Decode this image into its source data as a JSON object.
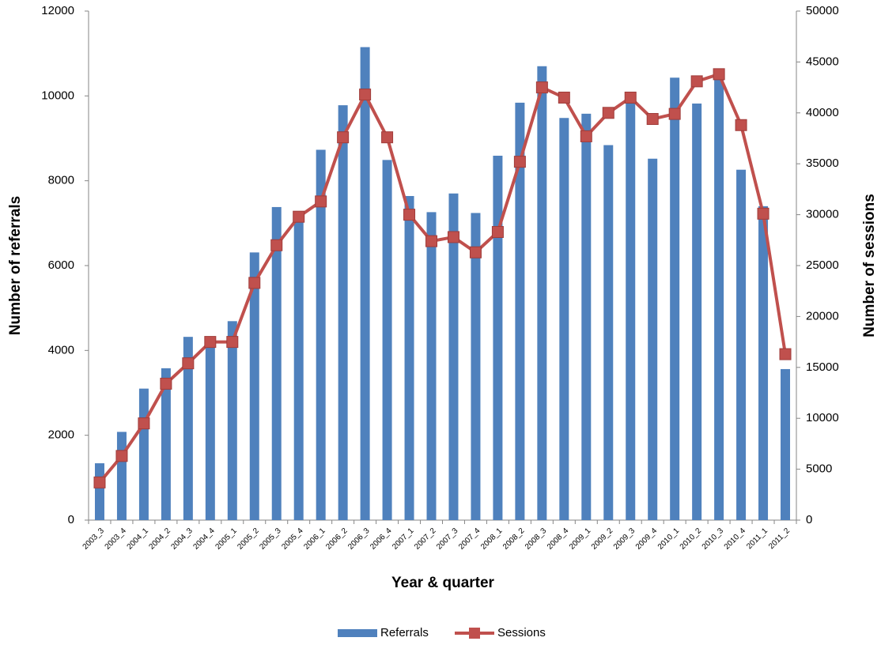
{
  "chart_data": {
    "type": "bar_line",
    "x_label": "Year & quarter",
    "y_label": "Number of referrals",
    "y2_label": "Number of sessions",
    "categories": [
      "2003_3",
      "2003_4",
      "2004_1",
      "2004_2",
      "2004_3",
      "2004_4",
      "2005_1",
      "2005_2",
      "2005_3",
      "2005_4",
      "2006_1",
      "2006_2",
      "2006_3",
      "2006_4",
      "2007_1",
      "2007_2",
      "2007_3",
      "2007_4",
      "2008_1",
      "2008_2",
      "2008_3",
      "2008_4",
      "2009_1",
      "2009_2",
      "2009_3",
      "2009_4",
      "2010_1",
      "2010_2",
      "2010_3",
      "2010_4",
      "2011_1",
      "2011_2"
    ],
    "series": [
      {
        "name": "Referrals",
        "color": "#4f81bd",
        "kind": "bar",
        "axis": "y",
        "values": [
          1340,
          2080,
          3100,
          3580,
          4320,
          4150,
          4690,
          6310,
          7380,
          7180,
          8730,
          9780,
          11150,
          8490,
          7640,
          7260,
          7700,
          7240,
          8590,
          9840,
          10700,
          9480,
          9580,
          8840,
          9960,
          8520,
          10430,
          9820,
          10500,
          8260,
          7400,
          3560
        ]
      },
      {
        "name": "Sessions",
        "color": "#c0504d",
        "kind": "line",
        "axis": "y2",
        "values": [
          3700,
          6300,
          9500,
          13400,
          15400,
          17500,
          17500,
          23300,
          27000,
          29800,
          31300,
          37600,
          41800,
          37600,
          30000,
          27400,
          27800,
          26300,
          28300,
          35200,
          42500,
          41500,
          37700,
          40000,
          41500,
          39400,
          39900,
          43100,
          43800,
          38800,
          30100,
          16300
        ]
      }
    ],
    "ylim": [
      0,
      12000
    ],
    "yticks": [
      0,
      2000,
      4000,
      6000,
      8000,
      10000,
      12000
    ],
    "y2lim": [
      0,
      50000
    ],
    "y2ticks": [
      0,
      5000,
      10000,
      15000,
      20000,
      25000,
      30000,
      35000,
      40000,
      45000,
      50000
    ],
    "legend": "bottom"
  }
}
